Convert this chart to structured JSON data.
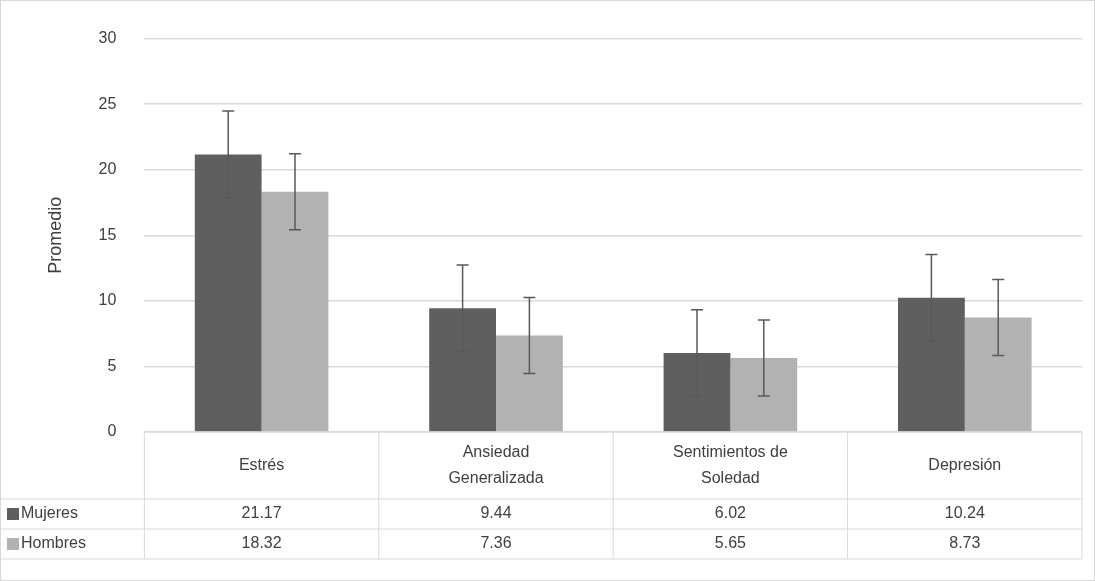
{
  "chart_data": {
    "type": "bar",
    "ylabel": "Promedio",
    "categories": [
      "Estrés",
      "Ansiedad Generalizada",
      "Sentimientos de Soledad",
      "Depresión"
    ],
    "series": [
      {
        "name": "Mujeres",
        "color": "#5f5f5f",
        "values": [
          21.17,
          9.44,
          6.02,
          10.24
        ],
        "errors": [
          3.3,
          3.3,
          3.3,
          3.3
        ]
      },
      {
        "name": "Hombres",
        "color": "#b2b2b2",
        "values": [
          18.32,
          7.36,
          5.65,
          8.73
        ],
        "errors": [
          2.9,
          2.9,
          2.9,
          2.9
        ]
      }
    ],
    "ylim": [
      0,
      30
    ],
    "yticks": [
      0,
      5,
      10,
      15,
      20,
      25,
      30
    ],
    "grid": "y",
    "legend": "bottom",
    "data_labels": true
  }
}
